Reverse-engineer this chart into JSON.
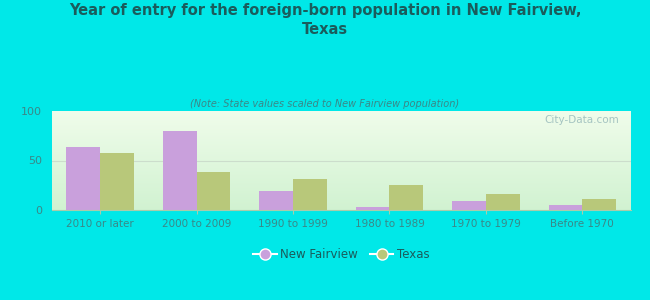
{
  "title": "Year of entry for the foreign-born population in New Fairview,\nTexas",
  "subtitle": "(Note: State values scaled to New Fairview population)",
  "categories": [
    "2010 or later",
    "2000 to 2009",
    "1990 to 1999",
    "1980 to 1989",
    "1970 to 1979",
    "Before 1970"
  ],
  "new_fairview": [
    64,
    80,
    19,
    3,
    9,
    5
  ],
  "texas": [
    58,
    38,
    31,
    25,
    16,
    11
  ],
  "color_nf": "#c9a0dc",
  "color_tx": "#b8c87a",
  "ylim": [
    0,
    100
  ],
  "yticks": [
    0,
    50,
    100
  ],
  "bg_color": "#00e8e8",
  "watermark": "City-Data.com",
  "bar_width": 0.35,
  "legend_nf": "New Fairview",
  "legend_tx": "Texas",
  "title_color": "#1a5c5c",
  "subtitle_color": "#3a8888",
  "tick_color": "#3a8888",
  "hline_color": "#ccddcc",
  "spine_color": "#aaccaa"
}
